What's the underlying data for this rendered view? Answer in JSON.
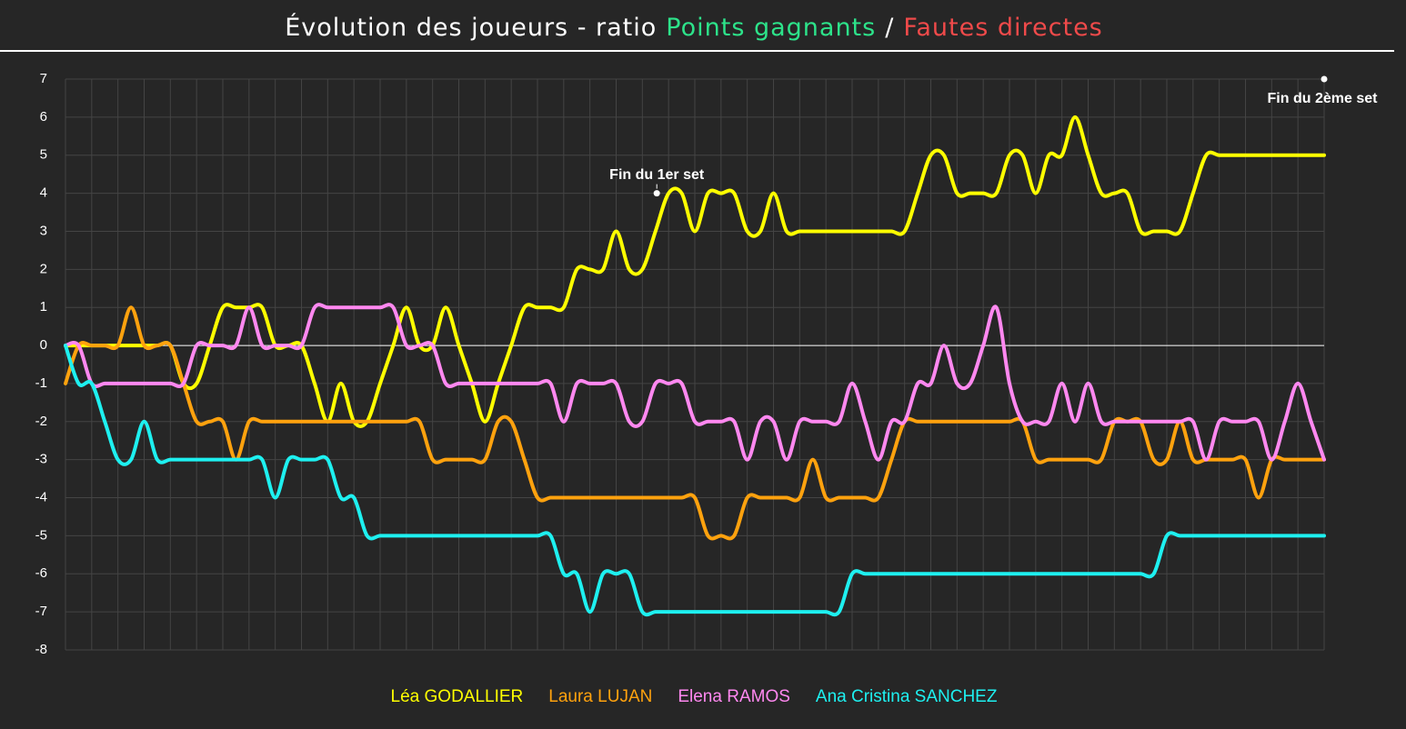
{
  "chart_data": {
    "type": "line",
    "title_parts": [
      {
        "text": "Évolution des joueurs - ratio",
        "color": "#ffffff"
      },
      {
        "text": "Points gagnants",
        "color": "#2de38a"
      },
      {
        "text": "/",
        "color": "#ffffff"
      },
      {
        "text": "Fautes directes",
        "color": "#f04a4a"
      }
    ],
    "x": [
      0,
      1,
      2,
      3,
      4,
      5,
      6,
      7,
      8,
      9,
      10,
      11,
      12,
      13,
      14,
      15,
      16,
      17,
      18,
      19,
      20,
      21,
      22,
      23,
      24,
      25,
      26,
      27,
      28,
      29,
      30,
      31,
      32,
      33,
      34,
      35,
      36,
      37,
      38,
      39,
      40,
      41,
      42,
      43,
      44,
      45,
      46,
      47,
      48,
      49,
      50,
      51,
      52,
      53,
      54,
      55,
      56,
      57,
      58,
      59,
      60,
      61,
      62,
      63,
      64,
      65,
      66,
      67,
      68,
      69,
      70,
      71,
      72,
      73,
      74,
      75,
      76,
      77,
      78,
      79,
      80,
      81,
      82,
      83,
      84,
      85,
      86,
      87,
      88,
      89,
      90,
      91,
      92,
      93,
      94,
      95,
      96
    ],
    "xlim": [
      0,
      96
    ],
    "xticks": [
      0,
      2,
      4,
      6,
      8,
      10,
      12,
      14,
      16,
      18,
      20,
      22,
      24,
      26,
      28,
      30,
      32,
      34,
      36,
      38,
      40,
      42,
      44,
      46,
      48,
      50,
      52,
      54,
      56,
      58,
      60,
      62,
      64,
      66,
      68,
      70,
      72,
      74,
      76,
      78,
      80,
      82,
      84,
      86,
      88,
      90,
      92,
      94,
      96
    ],
    "ylim": [
      -8,
      7
    ],
    "yticks": [
      -8,
      -7,
      -6,
      -5,
      -4,
      -3,
      -2,
      -1,
      0,
      1,
      2,
      3,
      4,
      5,
      6,
      7
    ],
    "grid": true,
    "series": [
      {
        "name": "Léa GODALLIER",
        "color": "#ffff00",
        "values": [
          0,
          0,
          0,
          0,
          0,
          0,
          0,
          0,
          0,
          -1,
          -1,
          0,
          1,
          1,
          1,
          1,
          0,
          0,
          0,
          -1,
          -2,
          -1,
          -2,
          -2,
          -1,
          0,
          1,
          0,
          0,
          1,
          0,
          -1,
          -2,
          -1,
          0,
          1,
          1,
          1,
          1,
          2,
          2,
          2,
          3,
          2,
          2,
          3,
          4,
          4,
          3,
          4,
          4,
          4,
          3,
          3,
          4,
          3,
          3,
          3,
          3,
          3,
          3,
          3,
          3,
          3,
          3,
          4,
          5,
          5,
          4,
          4,
          4,
          4,
          5,
          5,
          4,
          5,
          5,
          6,
          5,
          4,
          4,
          4,
          3,
          3,
          3,
          3,
          4,
          5,
          5,
          5,
          5,
          5,
          5,
          5,
          5,
          5,
          5
        ]
      },
      {
        "name": "Laura LUJAN",
        "color": "#ffa20e",
        "values": [
          -1,
          0,
          0,
          0,
          0,
          1,
          0,
          0,
          0,
          -1,
          -2,
          -2,
          -2,
          -3,
          -2,
          -2,
          -2,
          -2,
          -2,
          -2,
          -2,
          -2,
          -2,
          -2,
          -2,
          -2,
          -2,
          -2,
          -3,
          -3,
          -3,
          -3,
          -3,
          -2,
          -2,
          -3,
          -4,
          -4,
          -4,
          -4,
          -4,
          -4,
          -4,
          -4,
          -4,
          -4,
          -4,
          -4,
          -4,
          -5,
          -5,
          -5,
          -4,
          -4,
          -4,
          -4,
          -4,
          -3,
          -4,
          -4,
          -4,
          -4,
          -4,
          -3,
          -2,
          -2,
          -2,
          -2,
          -2,
          -2,
          -2,
          -2,
          -2,
          -2,
          -3,
          -3,
          -3,
          -3,
          -3,
          -3,
          -2,
          -2,
          -2,
          -3,
          -3,
          -2,
          -3,
          -3,
          -3,
          -3,
          -3,
          -4,
          -3,
          -3,
          -3,
          -3,
          -3
        ]
      },
      {
        "name": "Elena RAMOS",
        "color": "#ff88f0",
        "values": [
          0,
          0,
          -1,
          -1,
          -1,
          -1,
          -1,
          -1,
          -1,
          -1,
          0,
          0,
          0,
          0,
          1,
          0,
          0,
          0,
          0,
          1,
          1,
          1,
          1,
          1,
          1,
          1,
          0,
          0,
          0,
          -1,
          -1,
          -1,
          -1,
          -1,
          -1,
          -1,
          -1,
          -1,
          -2,
          -1,
          -1,
          -1,
          -1,
          -2,
          -2,
          -1,
          -1,
          -1,
          -2,
          -2,
          -2,
          -2,
          -3,
          -2,
          -2,
          -3,
          -2,
          -2,
          -2,
          -2,
          -1,
          -2,
          -3,
          -2,
          -2,
          -1,
          -1,
          0,
          -1,
          -1,
          0,
          1,
          -1,
          -2,
          -2,
          -2,
          -1,
          -2,
          -1,
          -2,
          -2,
          -2,
          -2,
          -2,
          -2,
          -2,
          -2,
          -3,
          -2,
          -2,
          -2,
          -2,
          -3,
          -2,
          -1,
          -2,
          -3
        ]
      },
      {
        "name": "Ana Cristina SANCHEZ",
        "color": "#1ef0f0",
        "values": [
          0,
          -1,
          -1,
          -2,
          -3,
          -3,
          -2,
          -3,
          -3,
          -3,
          -3,
          -3,
          -3,
          -3,
          -3,
          -3,
          -4,
          -3,
          -3,
          -3,
          -3,
          -4,
          -4,
          -5,
          -5,
          -5,
          -5,
          -5,
          -5,
          -5,
          -5,
          -5,
          -5,
          -5,
          -5,
          -5,
          -5,
          -5,
          -6,
          -6,
          -7,
          -6,
          -6,
          -6,
          -7,
          -7,
          -7,
          -7,
          -7,
          -7,
          -7,
          -7,
          -7,
          -7,
          -7,
          -7,
          -7,
          -7,
          -7,
          -7,
          -6,
          -6,
          -6,
          -6,
          -6,
          -6,
          -6,
          -6,
          -6,
          -6,
          -6,
          -6,
          -6,
          -6,
          -6,
          -6,
          -6,
          -6,
          -6,
          -6,
          -6,
          -6,
          -6,
          -6,
          -5,
          -5,
          -5,
          -5,
          -5,
          -5,
          -5,
          -5,
          -5,
          -5,
          -5,
          -5,
          -5
        ]
      }
    ],
    "annotations": [
      {
        "text": "Fin du 1er set",
        "x": 45.1,
        "y": 4
      },
      {
        "text": "Fin du 2ème set",
        "x": 96,
        "y": 7
      }
    ]
  }
}
